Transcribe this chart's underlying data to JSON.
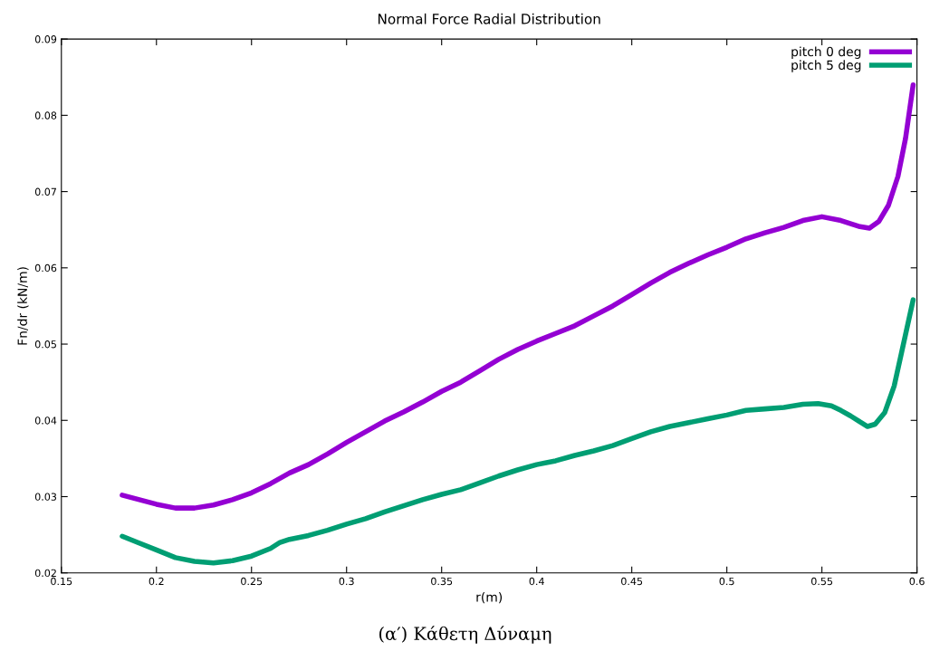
{
  "chart_data": {
    "type": "line",
    "title": "Normal Force Radial Distribution",
    "xlabel": "r(m)",
    "ylabel": "Fn/dr (kN/m)",
    "annotations": [
      "(α′) Κάθετη Δύναμη"
    ],
    "xlim": [
      0.15,
      0.6
    ],
    "ylim": [
      0.02,
      0.09
    ],
    "xticks": [
      0.15,
      0.2,
      0.25,
      0.3,
      0.35,
      0.4,
      0.45,
      0.5,
      0.55,
      0.6
    ],
    "yticks": [
      0.02,
      0.03,
      0.04,
      0.05,
      0.06,
      0.07,
      0.08,
      0.09
    ],
    "grid": false,
    "legend": "top right",
    "marker": "none",
    "line_style": "solid",
    "series": [
      {
        "name": "pitch 0 deg",
        "color": "#9400d3",
        "x": [
          0.182,
          0.2,
          0.21,
          0.22,
          0.23,
          0.24,
          0.25,
          0.26,
          0.27,
          0.28,
          0.29,
          0.3,
          0.31,
          0.32,
          0.33,
          0.34,
          0.35,
          0.36,
          0.37,
          0.38,
          0.39,
          0.4,
          0.41,
          0.42,
          0.43,
          0.44,
          0.45,
          0.46,
          0.47,
          0.48,
          0.49,
          0.5,
          0.51,
          0.52,
          0.53,
          0.54,
          0.55,
          0.56,
          0.57,
          0.575,
          0.58,
          0.585,
          0.59,
          0.594,
          0.598
        ],
        "values": [
          0.0302,
          0.029,
          0.0285,
          0.0285,
          0.0289,
          0.0296,
          0.0305,
          0.0317,
          0.0331,
          0.0342,
          0.0356,
          0.0371,
          0.0385,
          0.0399,
          0.0411,
          0.0424,
          0.0438,
          0.045,
          0.0465,
          0.048,
          0.0493,
          0.0504,
          0.0514,
          0.0524,
          0.0537,
          0.055,
          0.0565,
          0.058,
          0.0594,
          0.0606,
          0.0617,
          0.0627,
          0.0638,
          0.0646,
          0.0653,
          0.0662,
          0.0667,
          0.0662,
          0.0654,
          0.0652,
          0.0661,
          0.0682,
          0.072,
          0.077,
          0.084
        ]
      },
      {
        "name": "pitch 5 deg",
        "color": "#009e73",
        "x": [
          0.182,
          0.19,
          0.2,
          0.21,
          0.22,
          0.23,
          0.24,
          0.25,
          0.26,
          0.265,
          0.27,
          0.28,
          0.29,
          0.3,
          0.31,
          0.32,
          0.33,
          0.34,
          0.35,
          0.36,
          0.37,
          0.38,
          0.39,
          0.4,
          0.41,
          0.42,
          0.43,
          0.44,
          0.45,
          0.46,
          0.47,
          0.48,
          0.49,
          0.5,
          0.51,
          0.52,
          0.53,
          0.54,
          0.548,
          0.555,
          0.56,
          0.565,
          0.57,
          0.574,
          0.578,
          0.583,
          0.588,
          0.592,
          0.598
        ],
        "values": [
          0.0248,
          0.024,
          0.023,
          0.022,
          0.0215,
          0.0213,
          0.0216,
          0.0222,
          0.0232,
          0.024,
          0.0244,
          0.0249,
          0.0256,
          0.0264,
          0.0271,
          0.028,
          0.0288,
          0.0296,
          0.0303,
          0.0309,
          0.0318,
          0.0327,
          0.0335,
          0.0342,
          0.0347,
          0.0354,
          0.036,
          0.0367,
          0.0376,
          0.0385,
          0.0392,
          0.0397,
          0.0402,
          0.0407,
          0.0413,
          0.0415,
          0.0417,
          0.0421,
          0.0422,
          0.0419,
          0.0413,
          0.0406,
          0.0398,
          0.0392,
          0.0395,
          0.041,
          0.0445,
          0.049,
          0.0558
        ]
      }
    ]
  }
}
